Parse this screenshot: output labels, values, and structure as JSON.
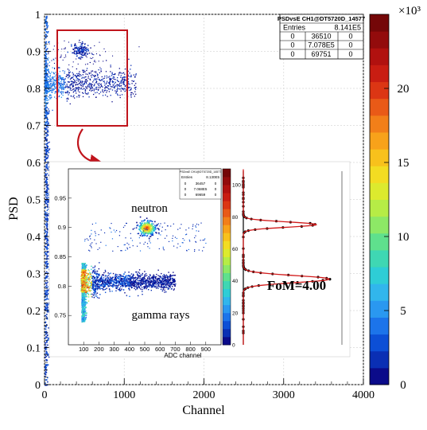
{
  "chart_data": [
    {
      "type": "heatmap",
      "xlabel": "Channel",
      "ylabel": "PSD",
      "xlim": [
        0,
        4000
      ],
      "ylim": [
        0,
        1
      ],
      "xticks": [
        "0",
        "1000",
        "2000",
        "3000",
        "4000"
      ],
      "yticks": [
        "0",
        "0.1",
        "0.2",
        "0.3",
        "0.4",
        "0.5",
        "0.6",
        "0.7",
        "0.8",
        "0.9",
        "1"
      ],
      "grid": true,
      "colorbar": {
        "ticks": [
          "0",
          "5",
          "10",
          "15",
          "20"
        ],
        "exponent_label": "×10³",
        "range": [
          0,
          25
        ],
        "colors": [
          "#0b0b8a",
          "#0a2fb4",
          "#0c4fd6",
          "#1c74ea",
          "#2a98f0",
          "#31b6ec",
          "#2ecdd6",
          "#3fd7b3",
          "#5fe08d",
          "#8de866",
          "#b6ec46",
          "#dcea2e",
          "#f3dc22",
          "#f8c11c",
          "#f8a21a",
          "#f27f19",
          "#e95a17",
          "#dc3614",
          "#c91d12",
          "#b1110f",
          "#930b0c",
          "#740708"
        ]
      },
      "stats_box": {
        "title": "PSDvsE CH1@DT5720D_14577",
        "entries_label": "Entries",
        "entries_value": "8.141E5",
        "rows": [
          [
            "0",
            "36510",
            "0"
          ],
          [
            "0",
            "7.078E5",
            "0"
          ],
          [
            "0",
            "69751",
            "0"
          ]
        ]
      },
      "clusters": [
        {
          "name": "gamma band",
          "x": [
            0,
            1150
          ],
          "y": 0.83
        },
        {
          "name": "neutron spot",
          "x": 450,
          "y": 0.905
        },
        {
          "name": "low-energy column",
          "x": [
            0,
            60
          ],
          "y": [
            0,
            1
          ]
        }
      ]
    },
    {
      "type": "heatmap",
      "xlabel": "ADC channel",
      "xlim": [
        0,
        1000
      ],
      "ylim": [
        0.7,
        1.0
      ],
      "xticks": [
        "100",
        "200",
        "300",
        "400",
        "500",
        "600",
        "700",
        "800",
        "900"
      ],
      "yticks": [
        "0.75",
        "0.8",
        "0.85",
        "0.9",
        "0.95"
      ],
      "colorbar_ticks": [
        "0",
        "20",
        "40",
        "60",
        "80",
        "100"
      ],
      "annotations": {
        "neutron": "neutron",
        "gamma": "gamma rays"
      },
      "stats_box": {
        "title": "PSDvsE CH1@DT5720D_14577",
        "entries_label": "Entries",
        "entries_value": "8.130E5",
        "rows": [
          [
            "0",
            "36457",
            "0"
          ],
          [
            "0",
            "7.068E5",
            "0"
          ],
          [
            "0",
            "69659",
            "0"
          ]
        ]
      }
    },
    {
      "type": "line",
      "name": "PSD projection",
      "fom_label": "FoM=4.00",
      "peaks": [
        0.812,
        0.905
      ]
    }
  ],
  "colors": {
    "annotation_red": "#b71c1c",
    "annotation_blue": "#2a4d8f",
    "highlight": "#c0141c"
  }
}
